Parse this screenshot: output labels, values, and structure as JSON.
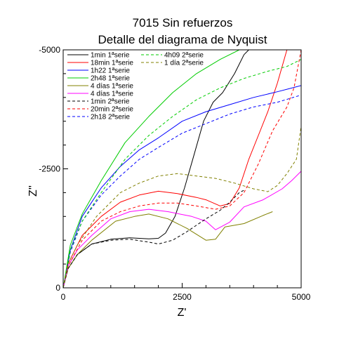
{
  "chart_data": {
    "type": "line",
    "title": [
      "7015 Sin refuerzos",
      "Detalle del diagrama de Nyquist"
    ],
    "xlabel": "Z'",
    "ylabel": "Z''",
    "xlim": [
      0,
      5000
    ],
    "ylim": [
      0,
      -5000
    ],
    "x_ticks": [
      {
        "value": 0,
        "label": "0"
      },
      {
        "value": 2500,
        "label": "2500"
      },
      {
        "value": 5000,
        "label": "5000"
      }
    ],
    "y_ticks": [
      {
        "value": 0,
        "label": "0"
      },
      {
        "value": -2500,
        "label": "-2500"
      },
      {
        "value": -5000,
        "label": "-5000"
      }
    ],
    "legend_position": "top-right (two columns)",
    "series": [
      {
        "name": "1min 1ªserie",
        "color": "#000000",
        "dash": "solid",
        "points": [
          [
            0,
            0
          ],
          [
            100,
            -400
          ],
          [
            300,
            -700
          ],
          [
            600,
            -920
          ],
          [
            1000,
            -1020
          ],
          [
            1400,
            -1050
          ],
          [
            1800,
            -1030
          ],
          [
            2000,
            -1040
          ],
          [
            2150,
            -1150
          ],
          [
            2350,
            -1500
          ],
          [
            2550,
            -2100
          ],
          [
            2750,
            -2800
          ],
          [
            2950,
            -3500
          ],
          [
            3150,
            -3900
          ],
          [
            3350,
            -4100
          ],
          [
            3600,
            -4500
          ],
          [
            3800,
            -4900
          ],
          [
            3900,
            -5000
          ]
        ]
      },
      {
        "name": "18min 1ªserie",
        "color": "#ff0000",
        "dash": "solid",
        "points": [
          [
            0,
            0
          ],
          [
            100,
            -500
          ],
          [
            400,
            -1100
          ],
          [
            800,
            -1500
          ],
          [
            1200,
            -1800
          ],
          [
            1600,
            -1950
          ],
          [
            2000,
            -2030
          ],
          [
            2400,
            -1980
          ],
          [
            2800,
            -1900
          ],
          [
            3000,
            -1850
          ],
          [
            3300,
            -1720
          ],
          [
            3500,
            -1770
          ],
          [
            3700,
            -2100
          ],
          [
            3900,
            -2700
          ],
          [
            4100,
            -3200
          ],
          [
            4300,
            -3700
          ],
          [
            4500,
            -4300
          ],
          [
            4700,
            -5000
          ]
        ]
      },
      {
        "name": "1h22 1ªserie",
        "color": "#0000ff",
        "dash": "solid",
        "points": [
          [
            0,
            0
          ],
          [
            150,
            -800
          ],
          [
            400,
            -1500
          ],
          [
            800,
            -2100
          ],
          [
            1200,
            -2550
          ],
          [
            1600,
            -2900
          ],
          [
            2000,
            -3150
          ],
          [
            2500,
            -3500
          ],
          [
            3000,
            -3700
          ],
          [
            3500,
            -3850
          ],
          [
            4000,
            -4000
          ],
          [
            4500,
            -4120
          ],
          [
            5000,
            -4250
          ]
        ]
      },
      {
        "name": "2h48 1ªserie",
        "color": "#00cc00",
        "dash": "solid",
        "points": [
          [
            0,
            0
          ],
          [
            150,
            -900
          ],
          [
            400,
            -1550
          ],
          [
            800,
            -2250
          ],
          [
            1300,
            -3050
          ],
          [
            1800,
            -3600
          ],
          [
            2300,
            -4100
          ],
          [
            2800,
            -4500
          ],
          [
            3300,
            -4800
          ],
          [
            3700,
            -5000
          ]
        ]
      },
      {
        "name": "4 días 1ªserie",
        "color": "#808000",
        "dash": "solid",
        "points": [
          [
            0,
            0
          ],
          [
            100,
            -400
          ],
          [
            300,
            -700
          ],
          [
            600,
            -1000
          ],
          [
            1100,
            -1400
          ],
          [
            1500,
            -1500
          ],
          [
            1800,
            -1550
          ],
          [
            2200,
            -1450
          ],
          [
            2600,
            -1250
          ],
          [
            3000,
            -1000
          ],
          [
            3200,
            -1020
          ],
          [
            3400,
            -1280
          ],
          [
            3800,
            -1350
          ],
          [
            4200,
            -1520
          ],
          [
            4400,
            -1600
          ]
        ]
      },
      {
        "name": "4 días 1ªserie",
        "color": "#ff00ff",
        "dash": "solid",
        "points": [
          [
            0,
            0
          ],
          [
            100,
            -450
          ],
          [
            300,
            -800
          ],
          [
            600,
            -1100
          ],
          [
            1000,
            -1450
          ],
          [
            1400,
            -1600
          ],
          [
            1800,
            -1650
          ],
          [
            2200,
            -1600
          ],
          [
            2700,
            -1500
          ],
          [
            3000,
            -1400
          ],
          [
            3200,
            -1220
          ],
          [
            3500,
            -1380
          ],
          [
            3800,
            -1700
          ],
          [
            4200,
            -1850
          ],
          [
            4600,
            -2080
          ],
          [
            4800,
            -2250
          ],
          [
            5000,
            -2450
          ]
        ]
      },
      {
        "name": "1min 2ªserie",
        "color": "#000000",
        "dash": "dashed",
        "points": [
          [
            0,
            0
          ],
          [
            100,
            -400
          ],
          [
            300,
            -700
          ],
          [
            600,
            -920
          ],
          [
            1000,
            -1000
          ],
          [
            1400,
            -1020
          ],
          [
            1800,
            -960
          ],
          [
            2000,
            -920
          ],
          [
            2300,
            -1000
          ],
          [
            2600,
            -1180
          ],
          [
            3000,
            -1450
          ],
          [
            3300,
            -1630
          ],
          [
            3500,
            -1800
          ],
          [
            3700,
            -2000
          ],
          [
            3800,
            -2050
          ]
        ]
      },
      {
        "name": "20min 2ªserie",
        "color": "#ff0000",
        "dash": "dashed",
        "points": [
          [
            0,
            0
          ],
          [
            100,
            -450
          ],
          [
            400,
            -1000
          ],
          [
            800,
            -1400
          ],
          [
            1200,
            -1600
          ],
          [
            1600,
            -1720
          ],
          [
            2000,
            -1780
          ],
          [
            2400,
            -1780
          ],
          [
            2800,
            -1720
          ],
          [
            3200,
            -1650
          ],
          [
            3500,
            -1720
          ],
          [
            3800,
            -2000
          ],
          [
            4100,
            -2600
          ],
          [
            4400,
            -3300
          ],
          [
            4700,
            -3800
          ],
          [
            4850,
            -4200
          ],
          [
            5000,
            -5000
          ]
        ]
      },
      {
        "name": "2h18 2ªserie",
        "color": "#0000ff",
        "dash": "dashed",
        "points": [
          [
            0,
            0
          ],
          [
            150,
            -750
          ],
          [
            400,
            -1400
          ],
          [
            800,
            -1950
          ],
          [
            1200,
            -2350
          ],
          [
            1600,
            -2700
          ],
          [
            2000,
            -2950
          ],
          [
            2500,
            -3250
          ],
          [
            3000,
            -3450
          ],
          [
            3500,
            -3650
          ],
          [
            4000,
            -3800
          ],
          [
            4500,
            -3900
          ],
          [
            5000,
            -4050
          ]
        ]
      },
      {
        "name": "4h09 2ªserie",
        "color": "#00cc00",
        "dash": "dashed",
        "points": [
          [
            0,
            0
          ],
          [
            150,
            -800
          ],
          [
            400,
            -1400
          ],
          [
            800,
            -2000
          ],
          [
            1300,
            -2700
          ],
          [
            1800,
            -3200
          ],
          [
            2300,
            -3600
          ],
          [
            2800,
            -3950
          ],
          [
            3300,
            -4200
          ],
          [
            3800,
            -4400
          ],
          [
            4300,
            -4550
          ],
          [
            4700,
            -4650
          ],
          [
            5000,
            -4800
          ]
        ]
      },
      {
        "name": "1 día 2ªserie",
        "color": "#808000",
        "dash": "dashed",
        "points": [
          [
            0,
            0
          ],
          [
            100,
            -500
          ],
          [
            300,
            -900
          ],
          [
            700,
            -1500
          ],
          [
            1200,
            -2000
          ],
          [
            1600,
            -2200
          ],
          [
            2000,
            -2350
          ],
          [
            2400,
            -2400
          ],
          [
            2800,
            -2350
          ],
          [
            3200,
            -2300
          ],
          [
            3600,
            -2200
          ],
          [
            4000,
            -2080
          ],
          [
            4300,
            -2020
          ],
          [
            4500,
            -2150
          ],
          [
            4700,
            -2400
          ],
          [
            4900,
            -2700
          ],
          [
            5000,
            -3400
          ]
        ]
      }
    ],
    "legend": {
      "left_column": [
        {
          "label": "1min 1ªserie",
          "color": "#000000",
          "dash": "solid"
        },
        {
          "label": "18min 1ªserie",
          "color": "#ff0000",
          "dash": "solid"
        },
        {
          "label": "1h22 1ªserie",
          "color": "#0000ff",
          "dash": "solid"
        },
        {
          "label": "2h48 1ªserie",
          "color": "#00cc00",
          "dash": "solid"
        },
        {
          "label": "4 días 1ªserie",
          "color": "#808000",
          "dash": "solid"
        },
        {
          "label": "4 días 1ªserie",
          "color": "#ff00ff",
          "dash": "solid"
        },
        {
          "label": "1min 2ªserie",
          "color": "#000000",
          "dash": "dashed"
        },
        {
          "label": "20min 2ªserie",
          "color": "#ff0000",
          "dash": "dashed"
        },
        {
          "label": "2h18 2ªserie",
          "color": "#0000ff",
          "dash": "dashed"
        }
      ],
      "right_column": [
        {
          "label": "4h09 2ªserie",
          "color": "#00cc00",
          "dash": "dashed"
        },
        {
          "label": "1 día 2ªserie",
          "color": "#808000",
          "dash": "dashed"
        }
      ]
    }
  }
}
